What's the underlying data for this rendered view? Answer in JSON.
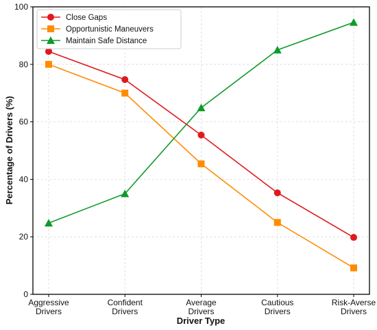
{
  "chart_data": {
    "type": "line",
    "categories": [
      [
        "Aggressive",
        "Drivers"
      ],
      [
        "Confident",
        "Drivers"
      ],
      [
        "Average",
        "Drivers"
      ],
      [
        "Cautious",
        "Drivers"
      ],
      [
        "Risk-Averse",
        "Drivers"
      ]
    ],
    "series": [
      {
        "name": "Close Gaps",
        "values": [
          84.5,
          74.7,
          55.4,
          35.3,
          19.8
        ],
        "color": "#e0191f",
        "marker": "circle"
      },
      {
        "name": "Opportunistic Maneuvers",
        "values": [
          80.0,
          70.0,
          45.4,
          25.0,
          9.2
        ],
        "color": "#ff8c00",
        "marker": "square"
      },
      {
        "name": "Maintain Safe Distance",
        "values": [
          24.8,
          35.0,
          64.9,
          85.0,
          94.6
        ],
        "color": "#0d9a2b",
        "marker": "triangle"
      }
    ],
    "xlabel": "Driver Type",
    "ylabel": "Percentage of Drivers (%)",
    "ylim": [
      0,
      100
    ],
    "yticks": [
      0,
      20,
      40,
      60,
      80,
      100
    ],
    "grid": true,
    "legend_position": "top-left"
  }
}
